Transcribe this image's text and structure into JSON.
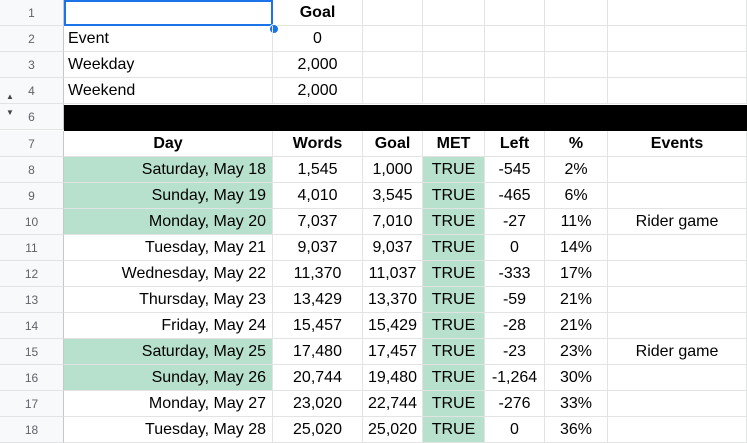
{
  "row_numbers": [
    "1",
    "2",
    "3",
    "4",
    "6",
    "7",
    "8",
    "9",
    "10",
    "11",
    "12",
    "13",
    "14",
    "15",
    "16",
    "17",
    "18"
  ],
  "config": {
    "header": {
      "goal": "Goal"
    },
    "rows": [
      {
        "label": "Event",
        "goal": "0"
      },
      {
        "label": "Weekday",
        "goal": "2,000"
      },
      {
        "label": "Weekend",
        "goal": "2,000"
      }
    ]
  },
  "table": {
    "headers": {
      "day": "Day",
      "words": "Words",
      "goal": "Goal",
      "met": "MET",
      "left": "Left",
      "pct": "%",
      "events": "Events"
    },
    "rows": [
      {
        "day": "Saturday, May 18",
        "words": "1,545",
        "goal": "1,000",
        "met": "TRUE",
        "left": "-545",
        "pct": "2%",
        "events": ""
      },
      {
        "day": "Sunday, May 19",
        "words": "4,010",
        "goal": "3,545",
        "met": "TRUE",
        "left": "-465",
        "pct": "6%",
        "events": ""
      },
      {
        "day": "Monday, May 20",
        "words": "7,037",
        "goal": "7,010",
        "met": "TRUE",
        "left": "-27",
        "pct": "11%",
        "events": "Rider game"
      },
      {
        "day": "Tuesday, May 21",
        "words": "9,037",
        "goal": "9,037",
        "met": "TRUE",
        "left": "0",
        "pct": "14%",
        "events": ""
      },
      {
        "day": "Wednesday, May 22",
        "words": "11,370",
        "goal": "11,037",
        "met": "TRUE",
        "left": "-333",
        "pct": "17%",
        "events": ""
      },
      {
        "day": "Thursday, May 23",
        "words": "13,429",
        "goal": "13,370",
        "met": "TRUE",
        "left": "-59",
        "pct": "21%",
        "events": ""
      },
      {
        "day": "Friday, May 24",
        "words": "15,457",
        "goal": "15,429",
        "met": "TRUE",
        "left": "-28",
        "pct": "21%",
        "events": ""
      },
      {
        "day": "Saturday, May 25",
        "words": "17,480",
        "goal": "17,457",
        "met": "TRUE",
        "left": "-23",
        "pct": "23%",
        "events": "Rider game"
      },
      {
        "day": "Sunday, May 26",
        "words": "20,744",
        "goal": "19,480",
        "met": "TRUE",
        "left": "-1,264",
        "pct": "30%",
        "events": ""
      },
      {
        "day": "Monday, May 27",
        "words": "23,020",
        "goal": "22,744",
        "met": "TRUE",
        "left": "-276",
        "pct": "33%",
        "events": ""
      },
      {
        "day": "Tuesday, May 28",
        "words": "25,020",
        "goal": "25,020",
        "met": "TRUE",
        "left": "0",
        "pct": "36%",
        "events": ""
      }
    ]
  },
  "colors": {
    "highlight_green": "#b7e1cd",
    "selection_blue": "#1a73e8"
  },
  "icons": {
    "group_expand": "triangle-up-icon",
    "group_collapse": "triangle-down-icon"
  }
}
